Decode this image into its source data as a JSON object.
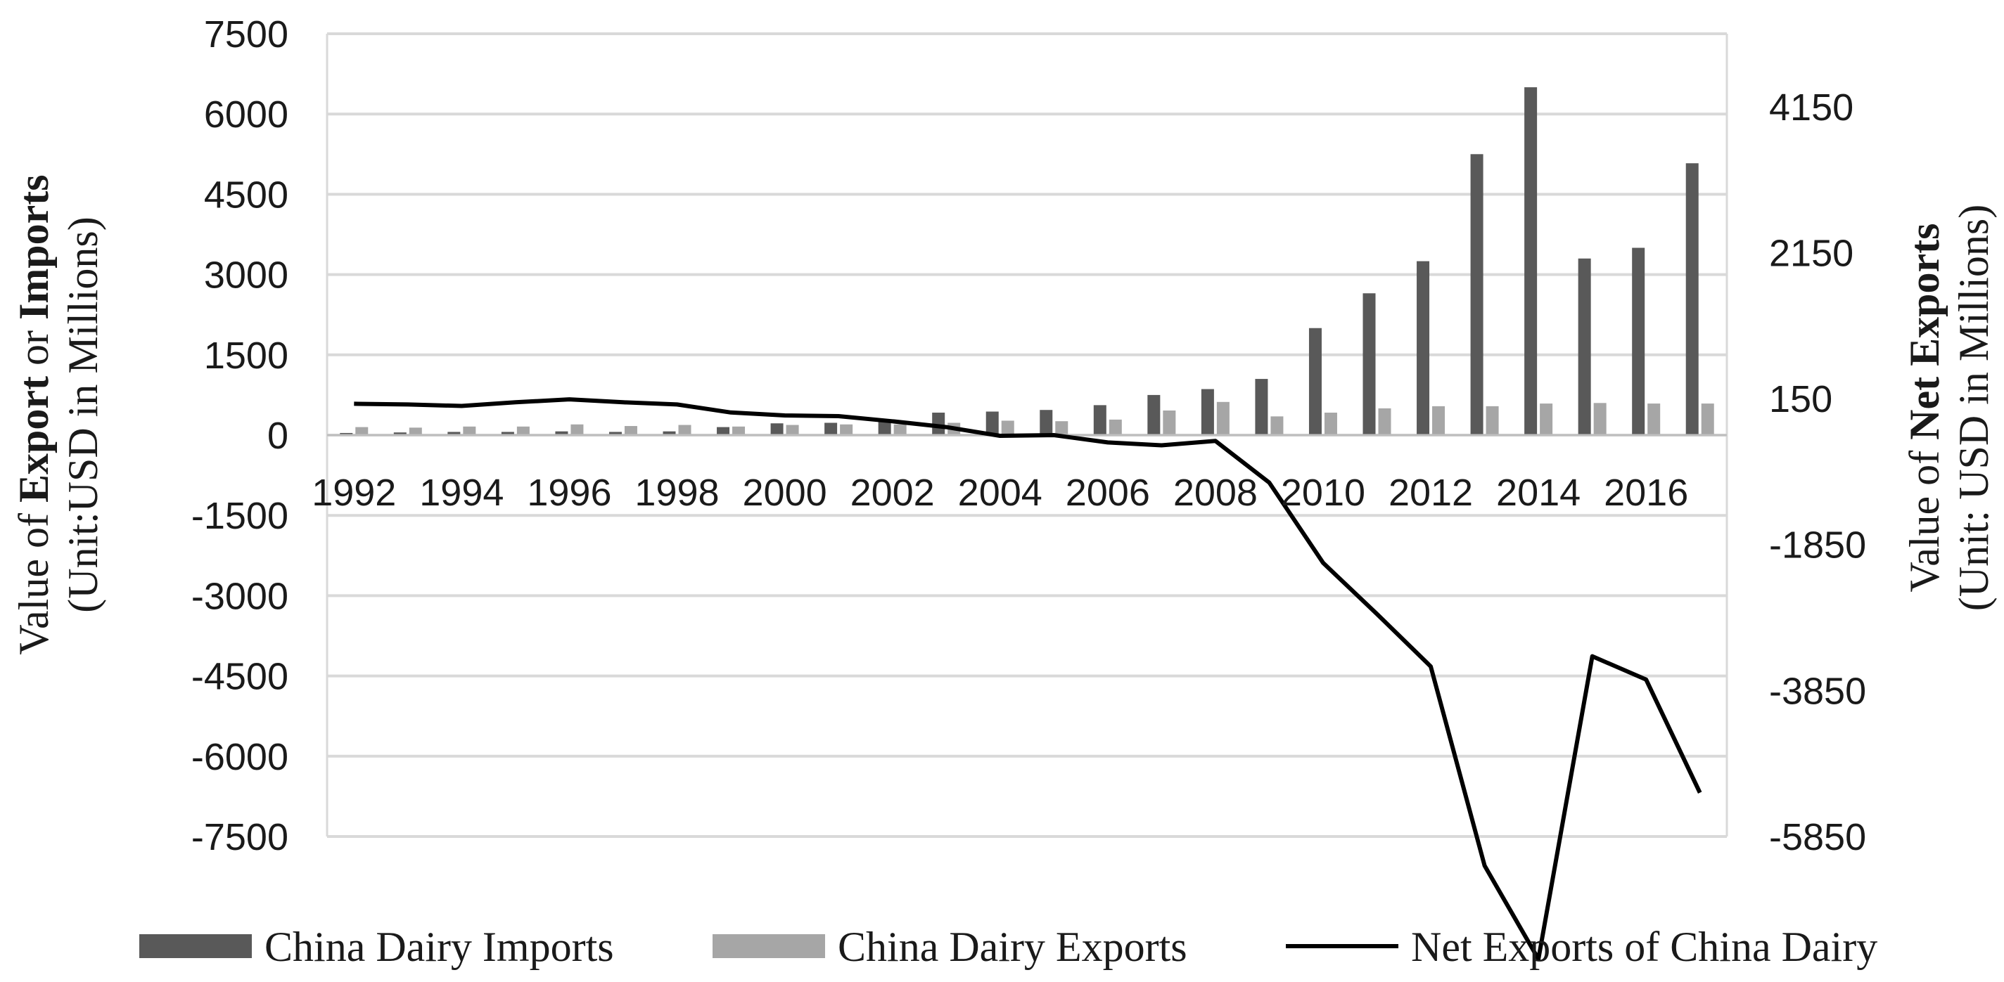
{
  "chart_data": {
    "type": "bar+line",
    "title": "",
    "categories": [
      "1992",
      "1993",
      "1994",
      "1995",
      "1996",
      "1997",
      "1998",
      "1999",
      "2000",
      "2001",
      "2002",
      "2003",
      "2004",
      "2005",
      "2006",
      "2007",
      "2008",
      "2009",
      "2010",
      "2011",
      "2012",
      "2013",
      "2014",
      "2015",
      "2016",
      "2017"
    ],
    "x_tick_labels": [
      "1992",
      "1994",
      "1996",
      "1998",
      "2000",
      "2002",
      "2004",
      "2006",
      "2008",
      "2010",
      "2012",
      "2014",
      "2016"
    ],
    "series": [
      {
        "name": "China Dairy Imports",
        "type": "bar",
        "axis": "left",
        "color": "#595959",
        "values": [
          40,
          50,
          60,
          60,
          70,
          60,
          70,
          150,
          220,
          230,
          290,
          420,
          440,
          470,
          560,
          750,
          860,
          1050,
          2000,
          2650,
          3250,
          5250,
          6500,
          3300,
          3500,
          5080
        ]
      },
      {
        "name": "China Dairy Exports",
        "type": "bar",
        "axis": "left",
        "color": "#a6a6a6",
        "values": [
          150,
          140,
          160,
          160,
          200,
          170,
          190,
          160,
          190,
          200,
          200,
          230,
          270,
          260,
          290,
          460,
          620,
          350,
          420,
          500,
          540,
          540,
          590,
          600,
          590,
          590
        ]
      },
      {
        "name": "Net Exports of China Dairy",
        "type": "line",
        "axis": "right",
        "color": "#000000",
        "values": [
          80,
          70,
          50,
          100,
          140,
          100,
          70,
          -40,
          -80,
          -90,
          -160,
          -240,
          -360,
          -350,
          -450,
          -490,
          -430,
          -1000,
          -2100,
          -2800,
          -3520,
          -6250,
          -7530,
          -3380,
          -3700,
          -5250
        ]
      }
    ],
    "left_axis": {
      "min": -7500,
      "max": 7500,
      "ticks": [
        "7500",
        "6000",
        "4500",
        "3000",
        "1500",
        "0",
        "-1500",
        "-3000",
        "-4500",
        "-6000",
        "-7500"
      ]
    },
    "right_axis": {
      "min": -5850,
      "max": 5150,
      "ticks": [
        "4150",
        "2150",
        "150",
        "-1850",
        "-3850",
        "-5850"
      ]
    },
    "left_axis_title": {
      "part1": "Value of ",
      "bold1": "Export",
      "part2": " or ",
      "bold2": "Imports",
      "line2": "(Unit:USD in Millions)"
    },
    "right_axis_title": {
      "part1": "Value of ",
      "bold1": "Net Exports",
      "line2": "(Unit: USD in Millions)"
    },
    "grid": true,
    "legend_position": "bottom"
  }
}
